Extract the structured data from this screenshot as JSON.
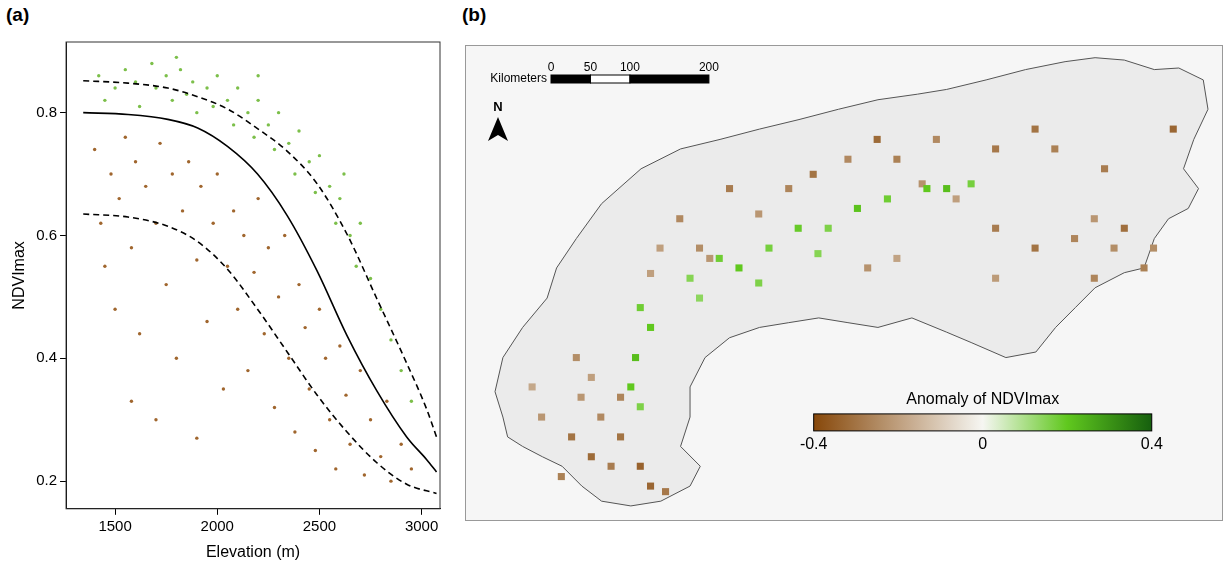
{
  "chart_data": [
    {
      "type": "scatter",
      "panel_label": "(a)",
      "x_label": "Elevation (m)",
      "y_label": "NDVImax",
      "xlim": [
        1260,
        3090
      ],
      "xticks": [
        1500,
        2000,
        2500,
        3000
      ],
      "ylim": [
        0.155,
        0.915
      ],
      "yticks": [
        0.2,
        0.4,
        0.6,
        0.8
      ],
      "grid": false,
      "series": [
        {
          "type": "scatter",
          "color": "#7cbf4a",
          "marker": "circle",
          "x": [
            1420,
            1450,
            1500,
            1550,
            1600,
            1620,
            1680,
            1700,
            1750,
            1780,
            1820,
            1850,
            1880,
            1900,
            1950,
            1980,
            2000,
            2050,
            2080,
            2100,
            2150,
            2180,
            2200,
            2250,
            2280,
            2300,
            2350,
            2380,
            2400,
            2450,
            2480,
            2500,
            2550,
            2580,
            2600,
            2650,
            2680,
            2700,
            2750,
            2800,
            2850,
            2900,
            2950,
            2620,
            2200,
            1800
          ],
          "values": [
            0.86,
            0.82,
            0.84,
            0.87,
            0.85,
            0.81,
            0.88,
            0.84,
            0.86,
            0.82,
            0.87,
            0.83,
            0.85,
            0.8,
            0.84,
            0.81,
            0.86,
            0.82,
            0.78,
            0.84,
            0.8,
            0.76,
            0.82,
            0.78,
            0.74,
            0.8,
            0.75,
            0.7,
            0.77,
            0.72,
            0.67,
            0.73,
            0.68,
            0.62,
            0.66,
            0.6,
            0.55,
            0.62,
            0.53,
            0.48,
            0.43,
            0.38,
            0.33,
            0.7,
            0.86,
            0.89
          ]
        },
        {
          "type": "scatter",
          "color": "#a0662e",
          "marker": "circle",
          "x": [
            1400,
            1430,
            1450,
            1480,
            1500,
            1520,
            1550,
            1580,
            1600,
            1620,
            1650,
            1700,
            1720,
            1750,
            1780,
            1800,
            1830,
            1860,
            1900,
            1920,
            1950,
            1980,
            2000,
            2030,
            2050,
            2080,
            2100,
            2130,
            2150,
            2180,
            2200,
            2230,
            2250,
            2280,
            2300,
            2330,
            2350,
            2380,
            2400,
            2430,
            2450,
            2480,
            2500,
            2530,
            2550,
            2580,
            2600,
            2630,
            2650,
            2700,
            2720,
            2750,
            2800,
            2830,
            2850,
            2900,
            2950,
            1580,
            1700,
            1900
          ],
          "values": [
            0.74,
            0.62,
            0.55,
            0.7,
            0.48,
            0.66,
            0.76,
            0.58,
            0.72,
            0.44,
            0.68,
            0.62,
            0.75,
            0.52,
            0.7,
            0.4,
            0.64,
            0.72,
            0.56,
            0.68,
            0.46,
            0.62,
            0.7,
            0.35,
            0.55,
            0.64,
            0.48,
            0.6,
            0.38,
            0.54,
            0.66,
            0.44,
            0.58,
            0.32,
            0.5,
            0.6,
            0.4,
            0.28,
            0.52,
            0.45,
            0.35,
            0.25,
            0.48,
            0.4,
            0.3,
            0.22,
            0.42,
            0.34,
            0.26,
            0.38,
            0.21,
            0.3,
            0.24,
            0.33,
            0.2,
            0.26,
            0.22,
            0.33,
            0.3,
            0.27
          ]
        },
        {
          "type": "line",
          "color": "#000000",
          "line_style": "solid",
          "x": [
            1344,
            1563,
            1758,
            1904,
            2050,
            2197,
            2343,
            2489,
            2635,
            2781,
            2927,
            3025,
            3073
          ],
          "values": [
            0.8,
            0.797,
            0.789,
            0.775,
            0.745,
            0.7,
            0.632,
            0.542,
            0.437,
            0.347,
            0.272,
            0.235,
            0.215
          ]
        },
        {
          "type": "line",
          "color": "#000000",
          "line_style": "dashed",
          "x": [
            1344,
            1563,
            1758,
            1904,
            2050,
            2197,
            2343,
            2489,
            2635,
            2781,
            2927,
            3025,
            3073
          ],
          "values": [
            0.852,
            0.848,
            0.84,
            0.826,
            0.806,
            0.774,
            0.737,
            0.684,
            0.602,
            0.497,
            0.392,
            0.317,
            0.272
          ]
        },
        {
          "type": "line",
          "color": "#000000",
          "line_style": "dashed",
          "x": [
            1344,
            1563,
            1758,
            1904,
            2050,
            2197,
            2343,
            2489,
            2635,
            2781,
            2927,
            3073
          ],
          "values": [
            0.635,
            0.63,
            0.615,
            0.59,
            0.545,
            0.48,
            0.41,
            0.34,
            0.28,
            0.23,
            0.195,
            0.18
          ]
        }
      ]
    },
    {
      "type": "map",
      "panel_label": "(b)",
      "xlim": [
        0,
        960
      ],
      "ylim": [
        0,
        600
      ],
      "tick_labels": false,
      "outline": [
        [
          38,
          163
        ],
        [
          48,
          206
        ],
        [
          73,
          244
        ],
        [
          104,
          281
        ],
        [
          116,
          319
        ],
        [
          141,
          356
        ],
        [
          173,
          400
        ],
        [
          223,
          444
        ],
        [
          273,
          469
        ],
        [
          323,
          481
        ],
        [
          373,
          494
        ],
        [
          423,
          506
        ],
        [
          473,
          519
        ],
        [
          523,
          531
        ],
        [
          573,
          538
        ],
        [
          610,
          544
        ],
        [
          660,
          556
        ],
        [
          710,
          569
        ],
        [
          760,
          579
        ],
        [
          798,
          584
        ],
        [
          835,
          581
        ],
        [
          873,
          569
        ],
        [
          904,
          571
        ],
        [
          935,
          556
        ],
        [
          941,
          519
        ],
        [
          923,
          481
        ],
        [
          910,
          444
        ],
        [
          929,
          419
        ],
        [
          916,
          394
        ],
        [
          891,
          381
        ],
        [
          873,
          356
        ],
        [
          860,
          319
        ],
        [
          835,
          313
        ],
        [
          798,
          294
        ],
        [
          773,
          269
        ],
        [
          748,
          244
        ],
        [
          723,
          213
        ],
        [
          685,
          206
        ],
        [
          641,
          225
        ],
        [
          610,
          238
        ],
        [
          566,
          256
        ],
        [
          523,
          244
        ],
        [
          485,
          250
        ],
        [
          448,
          256
        ],
        [
          410,
          250
        ],
        [
          373,
          244
        ],
        [
          335,
          231
        ],
        [
          304,
          206
        ],
        [
          285,
          169
        ],
        [
          285,
          131
        ],
        [
          273,
          94
        ],
        [
          298,
          69
        ],
        [
          285,
          44
        ],
        [
          248,
          25
        ],
        [
          210,
          19
        ],
        [
          173,
          25
        ],
        [
          148,
          44
        ],
        [
          123,
          69
        ],
        [
          98,
          81
        ],
        [
          73,
          94
        ],
        [
          54,
          106
        ],
        [
          48,
          131
        ]
      ],
      "cells": {
        "x": [
          135,
          160,
          185,
          172,
          147,
          197,
          222,
          122,
          160,
          141,
          197,
          235,
          254,
          85,
          97,
          247,
          297,
          335,
          372,
          410,
          441,
          485,
          522,
          547,
          579,
          622,
          672,
          722,
          772,
          797,
          835,
          860,
          872,
          897,
          672,
          597,
          722,
          747,
          672,
          797,
          547,
          510,
          272,
          235,
          310,
          810,
          822,
          222,
          235,
          216,
          210,
          222,
          285,
          322,
          347,
          385,
          422,
          460,
          497,
          535,
          585,
          610,
          641,
          297,
          372,
          447
        ],
        "y": [
          106,
          81,
          69,
          131,
          156,
          106,
          69,
          56,
          181,
          206,
          156,
          44,
          37,
          169,
          131,
          344,
          344,
          419,
          387,
          419,
          437,
          456,
          481,
          456,
          425,
          406,
          369,
          344,
          356,
          381,
          369,
          319,
          344,
          494,
          469,
          481,
          494,
          469,
          306,
          306,
          331,
          319,
          381,
          312,
          331,
          444,
          344,
          269,
          244,
          206,
          169,
          144,
          306,
          331,
          319,
          344,
          369,
          369,
          394,
          406,
          419,
          419,
          425,
          281,
          300,
          337
        ],
        "anomaly": [
          -0.3,
          -0.32,
          -0.28,
          -0.25,
          -0.22,
          -0.3,
          -0.34,
          -0.27,
          -0.2,
          -0.24,
          -0.26,
          -0.33,
          -0.29,
          -0.18,
          -0.22,
          -0.2,
          -0.24,
          -0.28,
          -0.22,
          -0.26,
          -0.3,
          -0.25,
          -0.32,
          -0.27,
          -0.23,
          -0.2,
          -0.28,
          -0.3,
          -0.26,
          -0.22,
          -0.31,
          -0.27,
          -0.24,
          -0.33,
          -0.29,
          -0.25,
          -0.3,
          -0.27,
          -0.21,
          -0.26,
          -0.19,
          -0.23,
          -0.25,
          -0.2,
          -0.22,
          -0.28,
          -0.24,
          0.18,
          0.2,
          0.22,
          0.2,
          0.16,
          0.15,
          0.18,
          0.2,
          0.17,
          0.19,
          0.16,
          0.21,
          0.18,
          0.2,
          0.22,
          0.17,
          0.14,
          0.16,
          0.15
        ]
      },
      "colorbar": {
        "title": "Anomaly of NDVImax",
        "range": [
          -0.4,
          0.4
        ],
        "ticks": [
          -0.4,
          0,
          0.4
        ]
      },
      "scale_bar": {
        "title": "Kilometers",
        "ticks": [
          0,
          50,
          100,
          200
        ]
      },
      "north_arrow": "N"
    }
  ]
}
